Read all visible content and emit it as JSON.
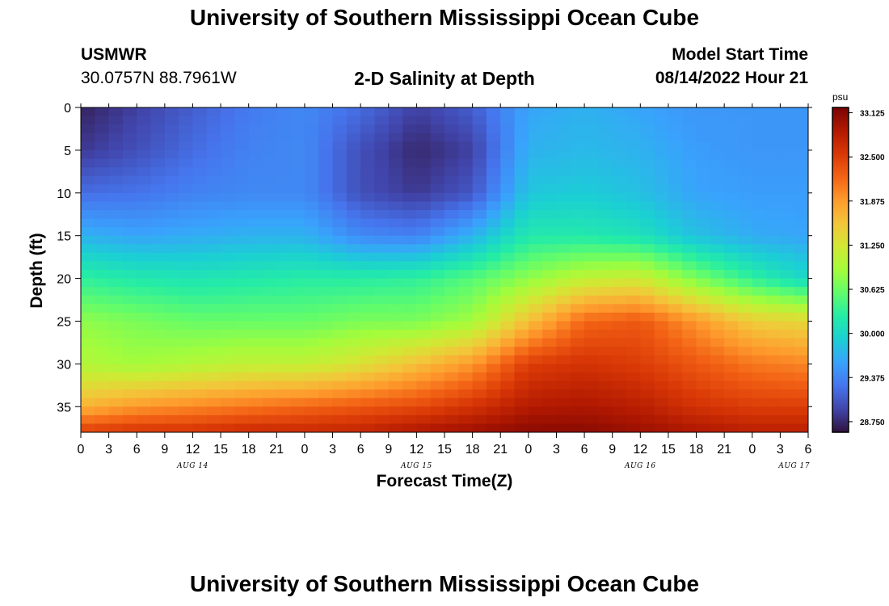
{
  "header": {
    "title": "University of Southern Mississippi Ocean Cube",
    "station": "USMWR",
    "coordinates": "30.0757N  88.7961W",
    "subtitle": "2-D Salinity at Depth",
    "start_label": "Model Start Time",
    "start_value": "08/14/2022 Hour 21"
  },
  "footer": {
    "title": "University of Southern Mississippi Ocean Cube"
  },
  "chart_data": {
    "type": "heatmap",
    "xlabel": "Forecast Time(Z)",
    "ylabel": "Depth (ft)",
    "x_tick_labels": [
      "0",
      "3",
      "6",
      "9",
      "12",
      "15",
      "18",
      "21",
      "0",
      "3",
      "6",
      "9",
      "12",
      "15",
      "18",
      "21",
      "0",
      "3",
      "6",
      "9",
      "12",
      "15",
      "18",
      "21",
      "0",
      "3",
      "6"
    ],
    "x_day_labels": [
      {
        "label": "AUG 14",
        "tick_index": 4
      },
      {
        "label": "AUG 15",
        "tick_index": 12
      },
      {
        "label": "AUG 16",
        "tick_index": 20
      },
      {
        "label": "AUG 17",
        "tick_index": 25.5
      }
    ],
    "y_ticks": [
      0,
      5,
      10,
      15,
      20,
      25,
      30,
      35
    ],
    "ylim": [
      38,
      0
    ],
    "xlim_hours": [
      0,
      78
    ],
    "colorbar": {
      "unit": "psu",
      "ticks": [
        "33.125",
        "32.500",
        "31.875",
        "31.250",
        "30.625",
        "30.000",
        "29.375",
        "28.750"
      ],
      "min": 28.6,
      "max": 33.2,
      "colors": [
        "#30123b",
        "#4145ab",
        "#4675ed",
        "#39a2fc",
        "#1bcfd4",
        "#24eca6",
        "#61fc6c",
        "#a4fc3b",
        "#d1e834",
        "#f3c63a",
        "#fe9b2d",
        "#f36315",
        "#d93806",
        "#b11901",
        "#7a0402"
      ]
    },
    "salinity_grid": {
      "x_hours": [
        0,
        6,
        12,
        18,
        24,
        30,
        36,
        42,
        48,
        54,
        60,
        66,
        72,
        78
      ],
      "depths_ft": [
        0,
        5,
        10,
        15,
        20,
        25,
        30,
        35,
        38
      ],
      "values": [
        [
          28.7,
          28.9,
          29.1,
          29.3,
          29.4,
          29.2,
          28.9,
          29.1,
          29.6,
          29.7,
          29.6,
          29.5,
          29.5,
          29.5
        ],
        [
          28.85,
          29.0,
          29.2,
          29.35,
          29.4,
          29.0,
          28.75,
          28.9,
          29.7,
          29.75,
          29.7,
          29.55,
          29.5,
          29.5
        ],
        [
          29.2,
          29.25,
          29.35,
          29.4,
          29.4,
          29.0,
          28.85,
          29.05,
          29.85,
          29.9,
          29.8,
          29.6,
          29.55,
          29.55
        ],
        [
          29.7,
          29.6,
          29.65,
          29.7,
          29.7,
          29.4,
          29.35,
          29.7,
          30.2,
          30.2,
          30.1,
          29.8,
          29.65,
          29.6
        ],
        [
          30.3,
          30.2,
          30.15,
          30.2,
          30.25,
          30.25,
          30.3,
          30.5,
          30.8,
          31.1,
          31.2,
          30.7,
          30.3,
          30.0
        ],
        [
          30.8,
          30.7,
          30.6,
          30.6,
          30.6,
          30.7,
          30.7,
          30.9,
          31.6,
          32.2,
          32.3,
          31.9,
          31.5,
          31.4
        ],
        [
          31.0,
          30.9,
          31.0,
          31.1,
          31.1,
          31.3,
          31.6,
          31.9,
          32.5,
          32.6,
          32.5,
          32.3,
          32.1,
          32.0
        ],
        [
          31.7,
          31.9,
          32.0,
          32.1,
          32.2,
          32.3,
          32.4,
          32.6,
          32.85,
          32.9,
          32.8,
          32.6,
          32.5,
          32.5
        ],
        [
          32.5,
          32.6,
          32.6,
          32.7,
          32.7,
          32.75,
          32.9,
          33.0,
          33.1,
          33.1,
          33.0,
          32.9,
          32.8,
          32.8
        ]
      ]
    }
  }
}
